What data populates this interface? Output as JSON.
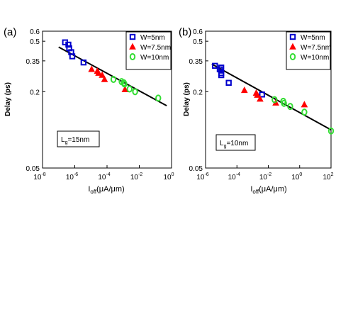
{
  "figure": {
    "panels": [
      "(a)",
      "(b)"
    ]
  },
  "chart_data": [
    {
      "type": "scatter",
      "panel_label": "(a)",
      "xlabel": "I_off (μA/μm)",
      "xlabel_main": "I",
      "xlabel_sub": "off",
      "xlabel_rest": "(μA/μm)",
      "ylabel": "Delay (ps)",
      "x_scale": "log",
      "y_scale": "log",
      "xlim": [
        1e-08,
        1
      ],
      "ylim": [
        0.05,
        0.6
      ],
      "x_ticks": [
        {
          "value": 1e-08,
          "base": "10",
          "exp": "-8"
        },
        {
          "value": 1e-06,
          "base": "10",
          "exp": "-6"
        },
        {
          "value": 0.0001,
          "base": "10",
          "exp": "-4"
        },
        {
          "value": 0.01,
          "base": "10",
          "exp": "-2"
        },
        {
          "value": 1,
          "base": "10",
          "exp": "0"
        }
      ],
      "y_ticks": [
        {
          "value": 0.05,
          "label": "0.05"
        },
        {
          "value": 0.2,
          "label": "0.2"
        },
        {
          "value": 0.35,
          "label": "0.35"
        },
        {
          "value": 0.5,
          "label": "0.5"
        },
        {
          "value": 0.6,
          "label": "0.6"
        }
      ],
      "annotation": {
        "main": "L",
        "sub": "g",
        "rest": "=15nm"
      },
      "legend_position": "top-right",
      "series": [
        {
          "name": "W=5nm",
          "marker": "square",
          "color": "#0000cc",
          "points": [
            [
              2.5e-07,
              0.49
            ],
            [
              4e-07,
              0.47
            ],
            [
              4.5e-07,
              0.44
            ],
            [
              6e-07,
              0.41
            ],
            [
              7e-07,
              0.38
            ],
            [
              3.5e-06,
              0.34
            ]
          ]
        },
        {
          "name": "W=7.5nm",
          "marker": "triangle",
          "color": "#ff0000",
          "points": [
            [
              1.1e-05,
              0.3
            ],
            [
              2.5e-05,
              0.29
            ],
            [
              3e-05,
              0.28
            ],
            [
              5e-05,
              0.27
            ],
            [
              7e-05,
              0.25
            ],
            [
              0.0013,
              0.208
            ]
          ]
        },
        {
          "name": "W=10nm",
          "marker": "circle",
          "color": "#33dd33",
          "points": [
            [
              0.00025,
              0.25
            ],
            [
              0.0008,
              0.24
            ],
            [
              0.0011,
              0.235
            ],
            [
              0.0012,
              0.23
            ],
            [
              0.0025,
              0.21
            ],
            [
              0.0055,
              0.2
            ],
            [
              0.15,
              0.178
            ]
          ]
        }
      ],
      "fit_line": {
        "x": [
          1e-07,
          0.5
        ],
        "y": [
          0.45,
          0.155
        ]
      }
    },
    {
      "type": "scatter",
      "panel_label": "(b)",
      "xlabel": "I_off (μA/μm)",
      "xlabel_main": "I",
      "xlabel_sub": "off",
      "xlabel_rest": "(μA/μm)",
      "ylabel": "Delay (ps)",
      "x_scale": "log",
      "y_scale": "log",
      "xlim": [
        1e-06,
        100
      ],
      "ylim": [
        0.05,
        0.6
      ],
      "x_ticks": [
        {
          "value": 1e-06,
          "base": "10",
          "exp": "-6"
        },
        {
          "value": 0.0001,
          "base": "10",
          "exp": "-4"
        },
        {
          "value": 0.01,
          "base": "10",
          "exp": "-2"
        },
        {
          "value": 1,
          "base": "10",
          "exp": "0"
        },
        {
          "value": 100,
          "base": "10",
          "exp": "2"
        }
      ],
      "y_ticks": [
        {
          "value": 0.05,
          "label": "0.05"
        },
        {
          "value": 0.2,
          "label": "0.2"
        },
        {
          "value": 0.35,
          "label": "0.35"
        },
        {
          "value": 0.5,
          "label": "0.5"
        },
        {
          "value": 0.6,
          "label": "0.6"
        }
      ],
      "annotation": {
        "main": "L",
        "sub": "g",
        "rest": "=10nm"
      },
      "legend_position": "top-right",
      "series": [
        {
          "name": "W=5nm",
          "marker": "square",
          "color": "#0000cc",
          "points": [
            [
              4e-06,
              0.32
            ],
            [
              8e-06,
              0.3
            ],
            [
              1e-05,
              0.31
            ],
            [
              1e-05,
              0.28
            ],
            [
              1e-05,
              0.27
            ],
            [
              3e-05,
              0.235
            ],
            [
              0.004,
              0.19
            ]
          ]
        },
        {
          "name": "W=7.5nm",
          "marker": "triangle",
          "color": "#ff0000",
          "points": [
            [
              0.0003,
              0.205
            ],
            [
              0.0017,
              0.195
            ],
            [
              0.002,
              0.188
            ],
            [
              0.003,
              0.175
            ],
            [
              0.03,
              0.163
            ],
            [
              2,
              0.158
            ]
          ]
        },
        {
          "name": "W=10nm",
          "marker": "circle",
          "color": "#33dd33",
          "points": [
            [
              0.025,
              0.173
            ],
            [
              0.09,
              0.168
            ],
            [
              0.1,
              0.162
            ],
            [
              0.25,
              0.153
            ],
            [
              2,
              0.138
            ],
            [
              100,
              0.098
            ]
          ]
        }
      ],
      "fit_line": {
        "x": [
          2.5e-06,
          100
        ],
        "y": [
          0.33,
          0.1
        ]
      }
    }
  ]
}
